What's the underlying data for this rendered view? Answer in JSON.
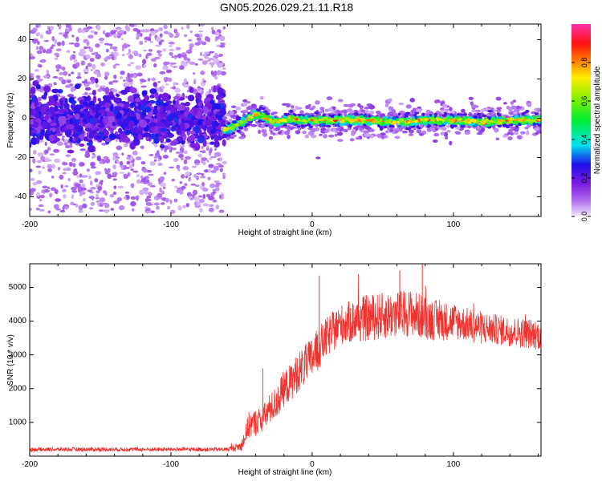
{
  "title": "GN05.2026.029.21.11.R18",
  "colors": {
    "snr_line": "#ef3430",
    "frame": "#000000",
    "background": "#ffffff"
  },
  "chart_data": [
    {
      "type": "heatmap",
      "xlabel": "Height of straight line (km)",
      "ylabel": "Frequency (Hz)",
      "xlim": [
        -200,
        162
      ],
      "ylim": [
        -50,
        48
      ],
      "xticks": [
        -200,
        -100,
        0,
        100
      ],
      "xtick_labels": [
        "-200",
        "-100",
        "0",
        "100"
      ],
      "yticks": [
        -40,
        -20,
        0,
        20,
        40
      ],
      "ytick_labels": [
        "-40",
        "-20",
        "0",
        "20",
        "40"
      ],
      "grid": false,
      "colorbar": {
        "label": "Normalized spectral amplitude",
        "range": [
          0,
          1
        ],
        "ticks": [
          0.0,
          0.2,
          0.4,
          0.6,
          0.8
        ],
        "tick_labels": [
          "0.0",
          "0.2",
          "0.4",
          "0.6",
          "0.8"
        ],
        "colormap": "rainbow (magenta-blue-cyan-green-yellow-red-pink)"
      },
      "regions": [
        {
          "x_range": [
            -200,
            -62
          ],
          "description": "broad noisy cloud",
          "center_freq": 0,
          "core_halfwidth": 10,
          "spread_halfwidth": 48,
          "amplitude_range": [
            0.0,
            0.3
          ]
        },
        {
          "x_range": [
            -62,
            162
          ],
          "description": "narrow signal band",
          "amplitude_range": [
            0.3,
            0.95
          ]
        }
      ],
      "ridge": {
        "x": [
          -62,
          -55,
          -50,
          -45,
          -40,
          -35,
          -30,
          -25,
          -20,
          -15,
          -10,
          0,
          20,
          40,
          60,
          80,
          100,
          120,
          140,
          160
        ],
        "y": [
          -6,
          -4,
          -2,
          0,
          2,
          1,
          -1,
          -2,
          -1,
          0,
          -1,
          -1,
          -1,
          -1,
          -2,
          -1,
          -1,
          -2,
          -1,
          -1
        ]
      }
    },
    {
      "type": "line",
      "xlabel": "Height of straight line (km)",
      "ylabel": "SNR (10 * v/v)",
      "xlim": [
        -200,
        162
      ],
      "ylim": [
        0,
        5700
      ],
      "xticks": [
        -200,
        -100,
        0,
        100
      ],
      "xtick_labels": [
        "-200",
        "-100",
        "0",
        "100"
      ],
      "yticks": [
        1000,
        2000,
        3000,
        4000,
        5000
      ],
      "ytick_labels": [
        "1000",
        "2000",
        "3000",
        "4000",
        "5000"
      ],
      "grid": false,
      "series": [
        {
          "color": "#ef3430",
          "x": [
            -200,
            -150,
            -100,
            -60,
            -50,
            -45,
            -40,
            -35,
            -30,
            -25,
            -20,
            -15,
            -10,
            -5,
            0,
            5,
            10,
            20,
            30,
            40,
            50,
            60,
            70,
            80,
            90,
            100,
            110,
            120,
            130,
            140,
            150,
            160
          ],
          "y": [
            200,
            200,
            200,
            200,
            300,
            900,
            1000,
            1100,
            1400,
            1600,
            2000,
            2200,
            2500,
            2700,
            2900,
            3200,
            3500,
            3900,
            4000,
            4100,
            4150,
            4200,
            4250,
            4100,
            4000,
            4000,
            3900,
            3800,
            3750,
            3700,
            3650,
            3600
          ],
          "noise_amplitude": [
            60,
            60,
            60,
            60,
            150,
            400,
            400,
            400,
            450,
            500,
            550,
            550,
            600,
            600,
            650,
            650,
            600,
            600,
            650,
            700,
            700,
            700,
            700,
            650,
            600,
            550,
            500,
            500,
            450,
            450,
            450,
            450
          ],
          "spikes": [
            {
              "x": -35,
              "y": 2600
            },
            {
              "x": 5,
              "y": 5350
            },
            {
              "x": 62,
              "y": 5500
            },
            {
              "x": 78,
              "y": 5700
            }
          ]
        }
      ]
    }
  ]
}
